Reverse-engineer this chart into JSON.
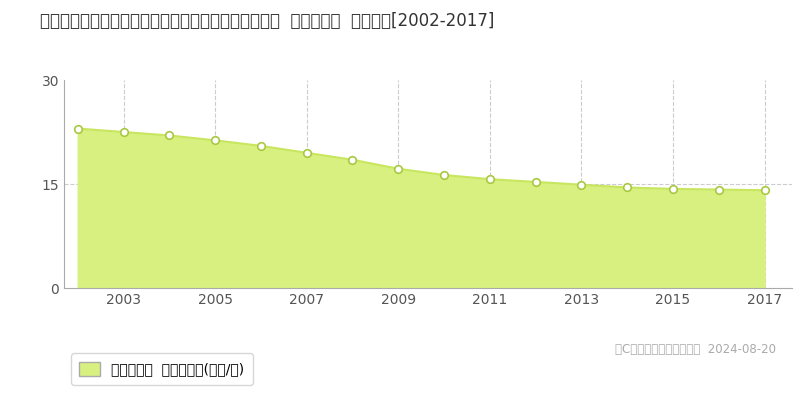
{
  "title": "和歌山県日高郡日高町大字萩原字西前田８７３番３内  基準地価格  地価推移[2002-2017]",
  "years": [
    2002,
    2003,
    2004,
    2005,
    2006,
    2007,
    2008,
    2009,
    2010,
    2011,
    2012,
    2013,
    2014,
    2015,
    2016,
    2017
  ],
  "values": [
    23.0,
    22.5,
    22.0,
    21.3,
    20.5,
    19.5,
    18.5,
    17.2,
    16.3,
    15.7,
    15.3,
    14.9,
    14.5,
    14.3,
    14.2,
    14.1
  ],
  "ylim": [
    0,
    30
  ],
  "yticks": [
    0,
    15,
    30
  ],
  "xticks": [
    2003,
    2005,
    2007,
    2009,
    2011,
    2013,
    2015,
    2017
  ],
  "line_color": "#c8e660",
  "fill_color": "#d8f080",
  "marker_facecolor": "#ffffff",
  "marker_edgecolor": "#a8c840",
  "grid_color": "#cccccc",
  "background_color": "#ffffff",
  "legend_label": "基準地価格  平均坪単価(万円/坪)",
  "copyright_text": "（C）土地価格ドットコム  2024-08-20",
  "title_fontsize": 12,
  "axis_fontsize": 10,
  "legend_fontsize": 10
}
